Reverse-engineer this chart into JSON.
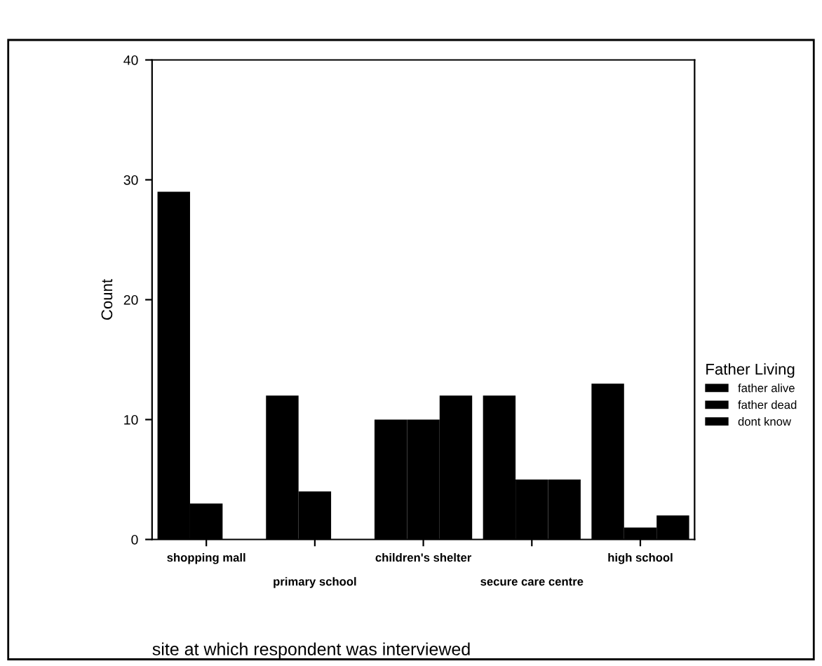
{
  "chart_data": {
    "type": "bar",
    "categories": [
      "shopping mall",
      "primary school",
      "children's shelter",
      "secure care centre",
      "high school"
    ],
    "series": [
      {
        "name": "father alive",
        "color": "#000000",
        "values": [
          29,
          12,
          10,
          12,
          13
        ]
      },
      {
        "name": "father dead",
        "color": "#000000",
        "values": [
          3,
          4,
          10,
          5,
          1
        ]
      },
      {
        "name": "dont know",
        "color": "#000000",
        "values": [
          0,
          0,
          12,
          5,
          2
        ]
      }
    ],
    "xlabel": "site at which respondent was interviewed",
    "ylabel": "Count",
    "legend_title": "Father Living",
    "ylim": [
      0,
      40
    ],
    "yticks": [
      0,
      10,
      20,
      30,
      40
    ],
    "grid": false,
    "legend": "right"
  }
}
